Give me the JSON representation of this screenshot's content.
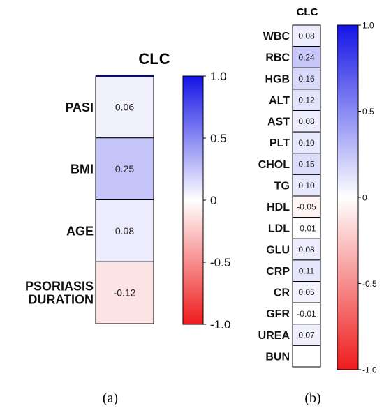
{
  "chart_data": [
    {
      "type": "heatmap",
      "title": "CLC",
      "panel_label": "(a)",
      "categories": [
        "PASI",
        "BMI",
        "AGE",
        "PSORIASIS DURATION"
      ],
      "values": [
        0.06,
        0.25,
        0.08,
        -0.12
      ],
      "value_labels": [
        "0.06",
        "0.25",
        "0.08",
        "-0.12"
      ],
      "colorbar": {
        "range": [
          -1.0,
          1.0
        ],
        "ticks": [
          1.0,
          0.5,
          0,
          -0.5,
          -1.0
        ],
        "tick_labels": [
          "1.0",
          "0.5",
          "0",
          "-0.5",
          "-1.0"
        ],
        "colors": {
          "max": "#1414e6",
          "mid": "#ffffff",
          "min": "#ee1c1c"
        }
      }
    },
    {
      "type": "heatmap",
      "title": "CLC",
      "panel_label": "(b)",
      "categories": [
        "WBC",
        "RBC",
        "HGB",
        "ALT",
        "AST",
        "PLT",
        "CHOL",
        "TG",
        "HDL",
        "LDL",
        "GLU",
        "CRP",
        "CR",
        "GFR",
        "UREA",
        "BUN"
      ],
      "values": [
        0.08,
        0.24,
        0.16,
        0.12,
        0.08,
        0.1,
        0.15,
        0.1,
        -0.05,
        -0.01,
        0.08,
        0.11,
        0.05,
        -0.01,
        0.07,
        null
      ],
      "value_labels": [
        "0.08",
        "0.24",
        "0.16",
        "0.12",
        "0.08",
        "0.10",
        "0.15",
        "0.10",
        "-0.05",
        "-0.01",
        "0.08",
        "0.11",
        "0.05",
        "-0.01",
        "0.07",
        ""
      ],
      "colorbar": {
        "range": [
          -1.0,
          1.0
        ],
        "ticks": [
          1.0,
          0.5,
          0,
          -0.5,
          -1.0
        ],
        "tick_labels": [
          "1.0",
          "0.5",
          "0",
          "-0.5",
          "-1.0"
        ],
        "colors": {
          "max": "#1414e6",
          "mid": "#ffffff",
          "min": "#ee1c1c"
        }
      }
    }
  ]
}
